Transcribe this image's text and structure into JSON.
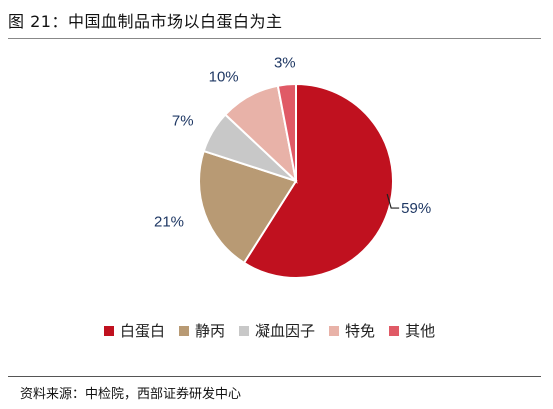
{
  "title": "图 21：中国血制品市场以白蛋白为主",
  "source": "资料来源：中检院，西部证券研发中心",
  "chart_data": {
    "type": "pie",
    "categories": [
      "白蛋白",
      "静丙",
      "凝血因子",
      "特免",
      "其他"
    ],
    "values": [
      59,
      21,
      7,
      10,
      3
    ],
    "labels": [
      "59%",
      "21%",
      "7%",
      "10%",
      "3%"
    ],
    "colors": [
      "#c0111f",
      "#b89a74",
      "#c8c8c8",
      "#e8b2a8",
      "#e05a66"
    ],
    "legend_position": "bottom"
  }
}
